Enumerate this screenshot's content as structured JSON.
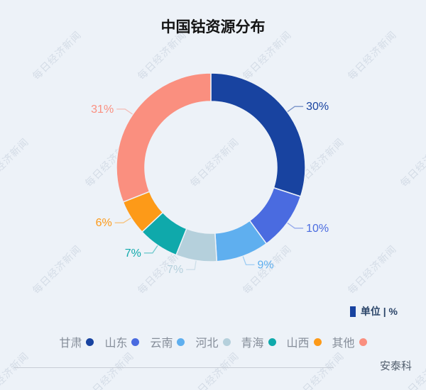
{
  "title": "中国钴资源分布",
  "watermark_text": "每日经济新闻",
  "unit_badge": {
    "label": "单位 | %"
  },
  "source": "安泰科",
  "colors": {
    "background": "#edf2f8",
    "title_text": "#141414",
    "legend_text": "#858d99",
    "unit_text": "#2b4569",
    "unit_bar": "#1843a0",
    "footer_line": "#c7ccd5",
    "source_text": "#525f6e",
    "watermark": "#bcc7d6"
  },
  "chart_data": {
    "type": "pie",
    "subtype": "donut",
    "title": "中国钴资源分布",
    "unit": "%",
    "clockwise": true,
    "start_angle": "top",
    "legend_position": "bottom",
    "segments": [
      {
        "label": "甘肃",
        "value": 30,
        "display": "30%",
        "color": "#1843a0"
      },
      {
        "label": "山东",
        "value": 10,
        "display": "10%",
        "color": "#4a6be0"
      },
      {
        "label": "云南",
        "value": 9,
        "display": "9%",
        "color": "#5fafef"
      },
      {
        "label": "河北",
        "value": 7,
        "display": "7%",
        "color": "#b5d0dc"
      },
      {
        "label": "青海",
        "value": 7,
        "display": "7%",
        "color": "#0fa9ab"
      },
      {
        "label": "山西",
        "value": 6,
        "display": "6%",
        "color": "#fd9a18"
      },
      {
        "label": "其他",
        "value": 31,
        "display": "31%",
        "color": "#fa8f7f"
      }
    ]
  }
}
